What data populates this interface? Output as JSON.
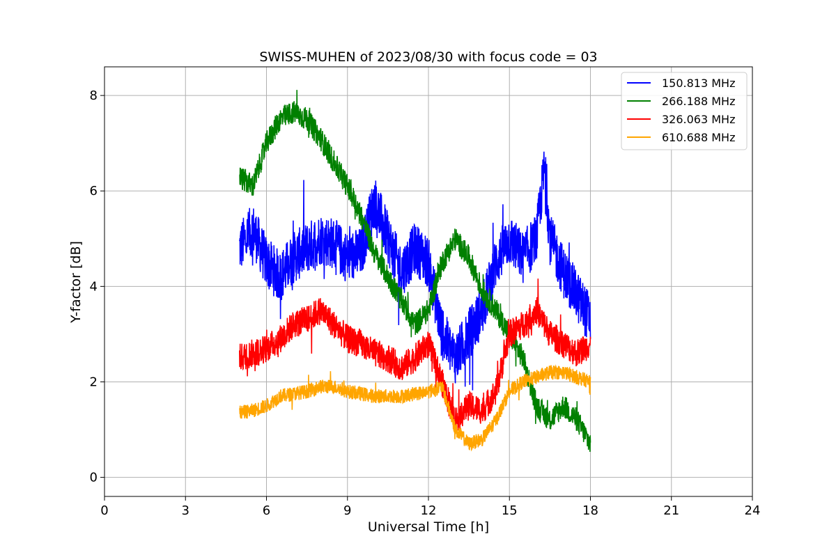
{
  "chart_data": {
    "type": "line",
    "title": "SWISS-MUHEN of 2023/08/30 with focus code = 03",
    "xlabel": "Universal Time [h]",
    "ylabel": "Y-factor [dB]",
    "xlim": [
      0,
      24
    ],
    "ylim": [
      -0.4,
      8.6
    ],
    "xticks": [
      "0",
      "3",
      "6",
      "9",
      "12",
      "15",
      "18",
      "21",
      "24"
    ],
    "yticks": [
      "0",
      "2",
      "4",
      "6",
      "8"
    ],
    "grid": true,
    "legend_position": "top-right",
    "series": [
      {
        "name": "150.813 MHz",
        "color": "#0000ff",
        "x": [
          5,
          5.5,
          6,
          6.5,
          7,
          7.5,
          8,
          8.5,
          9,
          9.5,
          10,
          10.5,
          11,
          11.5,
          12,
          12.5,
          13,
          13.5,
          14,
          14.5,
          15,
          15.5,
          16,
          16.3,
          16.5,
          17,
          17.5,
          18
        ],
        "y": [
          4.8,
          5.2,
          4.5,
          4.2,
          4.6,
          4.8,
          5.0,
          4.9,
          4.6,
          4.7,
          5.8,
          5.0,
          4.3,
          4.8,
          4.5,
          3.0,
          2.5,
          3.0,
          3.5,
          4.5,
          5.0,
          4.6,
          5.0,
          6.5,
          5.0,
          4.3,
          3.8,
          3.3
        ],
        "noise": 0.55
      },
      {
        "name": "266.188 MHz",
        "color": "#008000",
        "x": [
          5,
          5.5,
          6,
          6.5,
          7,
          7.5,
          8,
          8.5,
          9,
          9.5,
          10,
          10.5,
          11,
          11.5,
          12,
          12.5,
          13,
          13.5,
          14,
          14.5,
          15,
          15.5,
          16,
          16.5,
          17,
          17.5,
          18
        ],
        "y": [
          6.3,
          6.1,
          7.0,
          7.5,
          7.65,
          7.5,
          7.1,
          6.6,
          6.1,
          5.5,
          4.7,
          4.2,
          3.7,
          3.2,
          3.5,
          4.5,
          5.0,
          4.6,
          3.9,
          3.5,
          3.0,
          2.5,
          1.5,
          1.2,
          1.5,
          1.2,
          0.7
        ],
        "noise": 0.25
      },
      {
        "name": "326.063 MHz",
        "color": "#ff0000",
        "x": [
          5,
          5.5,
          6,
          6.5,
          7,
          7.5,
          8,
          8.5,
          9,
          9.5,
          10,
          10.5,
          11,
          11.5,
          12,
          12.5,
          13,
          13.5,
          14,
          14.5,
          15,
          15.5,
          16,
          16.5,
          17,
          17.5,
          18
        ],
        "y": [
          2.5,
          2.6,
          2.7,
          2.9,
          3.2,
          3.3,
          3.5,
          3.2,
          2.9,
          2.8,
          2.6,
          2.5,
          2.3,
          2.5,
          2.8,
          2.0,
          1.2,
          1.5,
          1.4,
          1.8,
          3.0,
          3.2,
          3.5,
          3.0,
          2.8,
          2.6,
          2.8
        ],
        "noise": 0.3
      },
      {
        "name": "610.688 MHz",
        "color": "#ffa500",
        "x": [
          5,
          5.5,
          6,
          6.5,
          7,
          7.5,
          8,
          8.5,
          9,
          9.5,
          10,
          10.5,
          11,
          11.5,
          12,
          12.5,
          13,
          13.5,
          14,
          14.5,
          15,
          15.5,
          16,
          16.5,
          17,
          17.5,
          18
        ],
        "y": [
          1.35,
          1.4,
          1.5,
          1.7,
          1.75,
          1.8,
          1.9,
          1.9,
          1.8,
          1.75,
          1.7,
          1.7,
          1.7,
          1.75,
          1.8,
          1.9,
          1.0,
          0.7,
          0.8,
          1.2,
          1.8,
          2.0,
          2.1,
          2.2,
          2.2,
          2.1,
          2.0
        ],
        "noise": 0.15
      }
    ]
  }
}
